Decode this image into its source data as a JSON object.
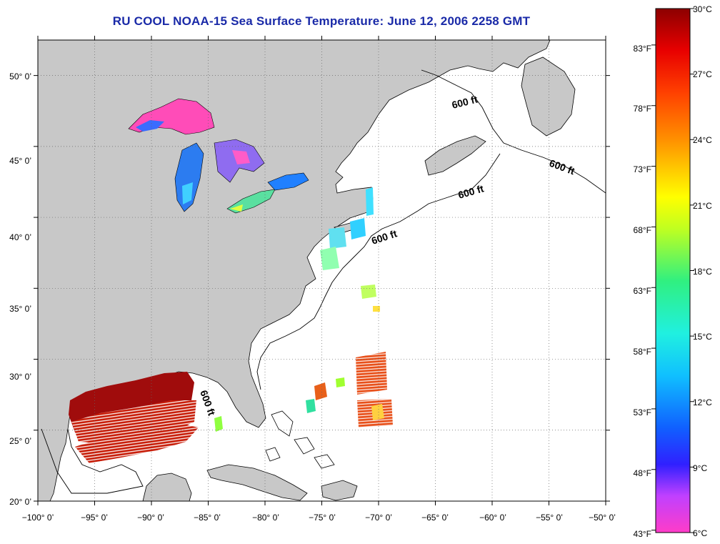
{
  "title": "RU COOL  NOAA-15  Sea Surface Temperature:  June 12, 2006 2258 GMT",
  "map": {
    "lon_range": [
      -100,
      -50
    ],
    "lat_range": [
      20,
      52.5
    ],
    "lon_ticks": [
      "−100° 0’",
      "−95° 0’",
      "−90° 0’",
      "−85° 0’",
      "−80° 0’",
      "−75° 0’",
      "−70° 0’",
      "−65° 0’",
      "−60° 0’",
      "−55° 0’",
      "−50° 0’"
    ],
    "lat_ticks": [
      "20° 0’",
      "25° 0’",
      "30° 0’",
      "35° 0’",
      "40° 0’",
      "45° 0’",
      "50° 0’"
    ],
    "contour_labels": [
      "600 ft",
      "600 ft",
      "600 ft",
      "600 ft",
      "600 ft"
    ],
    "colors": {
      "land": "#c8c8c8",
      "ocean": "#ffffff",
      "grid": "#666666"
    }
  },
  "colorbar": {
    "range_c": [
      6,
      30
    ],
    "celsius_labels": [
      "30°C",
      "27°C",
      "24°C",
      "21°C",
      "18°C",
      "15°C",
      "12°C",
      "9°C",
      "6°C"
    ],
    "fahrenheit_labels": [
      "83°F",
      "78°F",
      "73°F",
      "68°F",
      "63°F",
      "58°F",
      "53°F",
      "48°F",
      "43°F"
    ]
  }
}
